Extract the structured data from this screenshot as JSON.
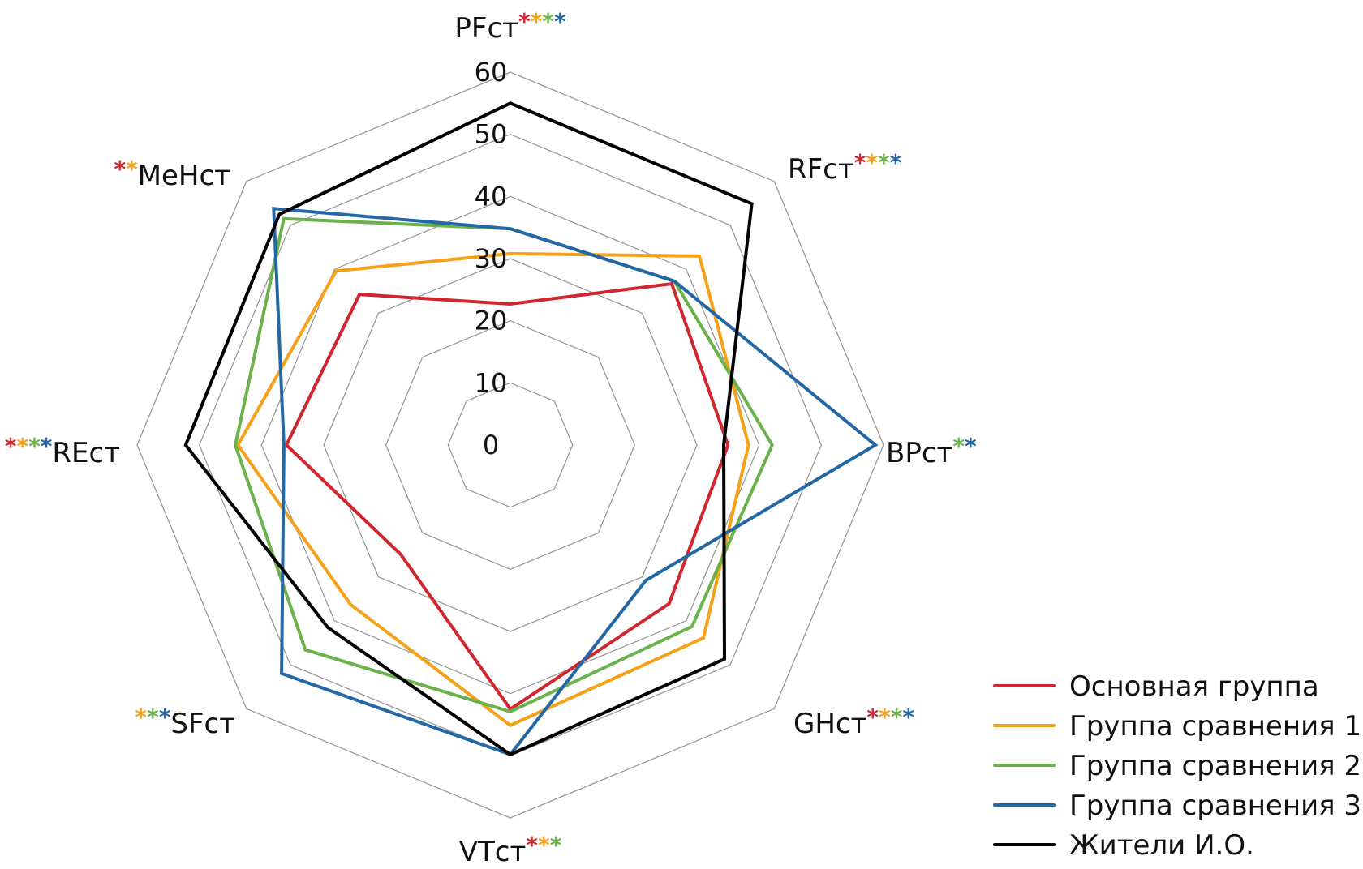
{
  "chart_data": {
    "type": "radar",
    "title": "",
    "axes": [
      {
        "label": "PFст",
        "stars": [
          "#d0262e",
          "#f6a11a",
          "#6bb24a",
          "#2367a6"
        ],
        "stars_position": "after"
      },
      {
        "label": "RFст",
        "stars": [
          "#d0262e",
          "#f6a11a",
          "#6bb24a",
          "#2367a6"
        ],
        "stars_position": "after"
      },
      {
        "label": "BPст",
        "stars": [
          "#6bb24a",
          "#2367a6"
        ],
        "stars_position": "after"
      },
      {
        "label": "GHст",
        "stars": [
          "#d0262e",
          "#f6a11a",
          "#6bb24a",
          "#2367a6"
        ],
        "stars_position": "after"
      },
      {
        "label": "VTст",
        "stars": [
          "#d0262e",
          "#f6a11a",
          "#6bb24a"
        ],
        "stars_position": "after"
      },
      {
        "label": "SFст",
        "stars": [
          "#f6a11a",
          "#6bb24a",
          "#2367a6"
        ],
        "stars_position": "before"
      },
      {
        "label": "REст",
        "stars": [
          "#d0262e",
          "#f6a11a",
          "#6bb24a",
          "#2367a6"
        ],
        "stars_position": "before"
      },
      {
        "label": "MeНст",
        "stars": [
          "#d0262e",
          "#f6a11a"
        ],
        "stars_position": "before"
      }
    ],
    "star_glyph": "*",
    "rlim": [
      0,
      60
    ],
    "ticks": [
      "0",
      "10",
      "20",
      "30",
      "40",
      "50",
      "60"
    ],
    "tick_values": [
      0,
      10,
      20,
      30,
      40,
      50,
      60
    ],
    "grid": true,
    "legend_position": "bottom-right",
    "series": [
      {
        "name": "Основная группа",
        "color": "#d0262e",
        "values": [
          22.7,
          36.7,
          35.0,
          36.1,
          42.5,
          24.9,
          36.0,
          34.3
        ]
      },
      {
        "name": "Группа сравнения 1",
        "color": "#f6a11a",
        "values": [
          30.8,
          43.0,
          38.3,
          43.9,
          45.1,
          36.3,
          43.8,
          39.6
        ]
      },
      {
        "name": "Группа сравнения 2",
        "color": "#6bb24a",
        "values": [
          34.8,
          37.3,
          42.1,
          41.3,
          42.9,
          46.6,
          44.2,
          51.5
        ]
      },
      {
        "name": "Группа сравнения 3",
        "color": "#2367a6",
        "values": [
          34.8,
          37.3,
          58.7,
          30.8,
          49.8,
          52.0,
          36.4,
          53.8
        ]
      },
      {
        "name": "Жители И.О.",
        "color": "#000000",
        "values": [
          55.0,
          54.9,
          34.3,
          48.7,
          49.8,
          41.5,
          52.2,
          52.5
        ]
      }
    ]
  }
}
